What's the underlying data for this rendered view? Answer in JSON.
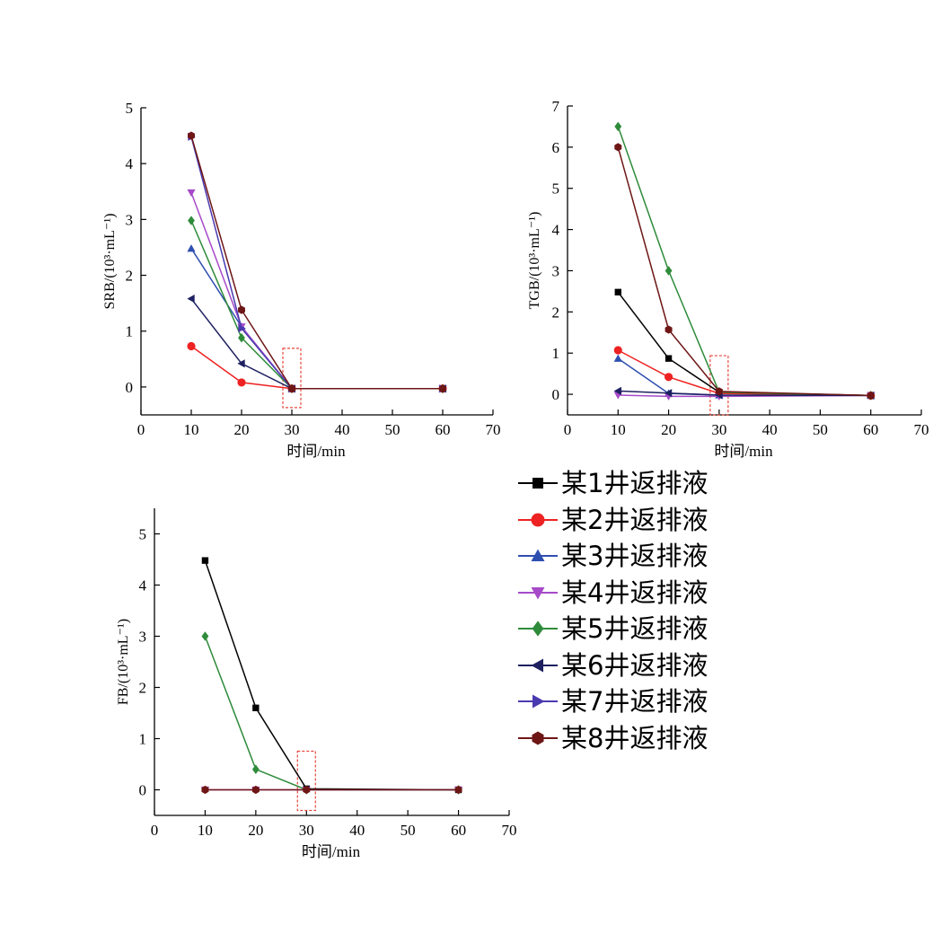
{
  "colors": {
    "axis": "#000000",
    "highlight_box": "#e8463c"
  },
  "legend": [
    {
      "label": "某1井返排液",
      "color": "#000000",
      "marker": "square"
    },
    {
      "label": "某2井返排液",
      "color": "#ee2222",
      "marker": "circle"
    },
    {
      "label": "某3井返排液",
      "color": "#2f4fb0",
      "marker": "triangle-up"
    },
    {
      "label": "某4井返排液",
      "color": "#a64ac9",
      "marker": "triangle-down"
    },
    {
      "label": "某5井返排液",
      "color": "#2e8b3a",
      "marker": "diamond"
    },
    {
      "label": "某6井返排液",
      "color": "#1e2060",
      "marker": "triangle-left"
    },
    {
      "label": "某7井返排液",
      "color": "#4a3ab0",
      "marker": "triangle-right"
    },
    {
      "label": "某8井返排液",
      "color": "#6e1616",
      "marker": "hexagon"
    }
  ],
  "chart_data": [
    {
      "type": "line",
      "ylabel": "SRB/(10³·mL⁻¹)",
      "xlabel": "时间/min",
      "xlim": [
        0,
        70
      ],
      "ylim": [
        -0.5,
        5
      ],
      "xticks": [
        0,
        10,
        20,
        30,
        40,
        50,
        60,
        70
      ],
      "yticks": [
        0,
        1,
        2,
        3,
        4,
        5
      ],
      "highlight_x": 30,
      "series": [
        {
          "legend_index": 1,
          "x": [
            10,
            20,
            30,
            60
          ],
          "values": [
            0.73,
            0.08,
            -0.03,
            -0.03
          ]
        },
        {
          "legend_index": 2,
          "x": [
            10,
            20,
            30,
            60
          ],
          "values": [
            2.48,
            1.08,
            -0.03,
            -0.03
          ]
        },
        {
          "legend_index": 3,
          "x": [
            10,
            20,
            30,
            60
          ],
          "values": [
            3.48,
            1.08,
            -0.03,
            -0.03
          ]
        },
        {
          "legend_index": 4,
          "x": [
            10,
            20,
            30,
            60
          ],
          "values": [
            2.98,
            0.88,
            -0.03,
            -0.03
          ]
        },
        {
          "legend_index": 5,
          "x": [
            10,
            20,
            30,
            60
          ],
          "values": [
            1.58,
            0.42,
            -0.03,
            -0.03
          ]
        },
        {
          "legend_index": 6,
          "x": [
            10,
            20,
            30,
            60
          ],
          "values": [
            4.48,
            1.05,
            -0.03,
            -0.03
          ]
        },
        {
          "legend_index": 7,
          "x": [
            10,
            20,
            30,
            60
          ],
          "values": [
            4.5,
            1.38,
            -0.03,
            -0.03
          ]
        }
      ]
    },
    {
      "type": "line",
      "ylabel": "TGB/(10³·mL⁻¹)",
      "xlabel": "时间/min",
      "xlim": [
        0,
        70
      ],
      "ylim": [
        -0.5,
        7
      ],
      "xticks": [
        0,
        10,
        20,
        30,
        40,
        50,
        60,
        70
      ],
      "yticks": [
        0,
        1,
        2,
        3,
        4,
        5,
        6,
        7
      ],
      "highlight_x": 30,
      "series": [
        {
          "legend_index": 0,
          "x": [
            10,
            20,
            30,
            60
          ],
          "values": [
            2.48,
            0.87,
            0.05,
            -0.03
          ]
        },
        {
          "legend_index": 1,
          "x": [
            10,
            20,
            30,
            60
          ],
          "values": [
            1.07,
            0.42,
            0.02,
            -0.03
          ]
        },
        {
          "legend_index": 2,
          "x": [
            10,
            20,
            30,
            60
          ],
          "values": [
            0.87,
            0.02,
            -0.02,
            -0.03
          ]
        },
        {
          "legend_index": 3,
          "x": [
            10,
            20,
            30,
            60
          ],
          "values": [
            -0.02,
            -0.05,
            -0.05,
            -0.03
          ]
        },
        {
          "legend_index": 4,
          "x": [
            10,
            20,
            30,
            60
          ],
          "values": [
            6.5,
            3.0,
            0.05,
            -0.03
          ]
        },
        {
          "legend_index": 5,
          "x": [
            10,
            20,
            30,
            60
          ],
          "values": [
            0.08,
            0.03,
            -0.02,
            -0.03
          ]
        },
        {
          "legend_index": 7,
          "x": [
            10,
            20,
            30,
            60
          ],
          "values": [
            6.0,
            1.57,
            0.07,
            -0.03
          ]
        }
      ]
    },
    {
      "type": "line",
      "ylabel": "FB/(10³·mL⁻¹)",
      "xlabel": "时间/min",
      "xlim": [
        0,
        70
      ],
      "ylim": [
        -0.5,
        5.5
      ],
      "xticks": [
        0,
        10,
        20,
        30,
        40,
        50,
        60,
        70
      ],
      "yticks": [
        0,
        1,
        2,
        3,
        4,
        5
      ],
      "highlight_x": 30,
      "series": [
        {
          "legend_index": 0,
          "x": [
            10,
            20,
            30,
            60
          ],
          "values": [
            4.48,
            1.6,
            0.02,
            0.0
          ]
        },
        {
          "legend_index": 4,
          "x": [
            10,
            20,
            30,
            60
          ],
          "values": [
            3.0,
            0.4,
            0.0,
            0.0
          ]
        },
        {
          "legend_index": 3,
          "x": [
            10,
            20,
            30,
            60
          ],
          "values": [
            0.0,
            0.0,
            0.0,
            0.0
          ]
        },
        {
          "legend_index": 7,
          "x": [
            10,
            20,
            30,
            60
          ],
          "values": [
            0.0,
            0.0,
            0.0,
            0.0
          ]
        }
      ]
    }
  ]
}
